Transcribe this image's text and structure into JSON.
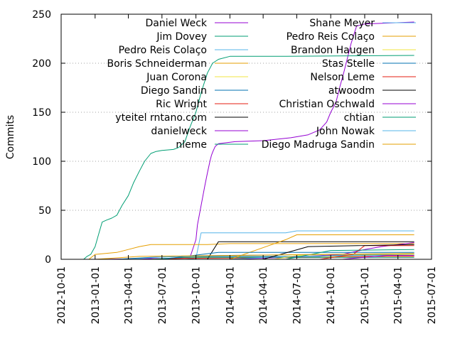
{
  "chart_data": {
    "type": "line",
    "xlabel": "",
    "ylabel": "Commits",
    "ylim": [
      0,
      250
    ],
    "xlim": [
      "2012-10-01",
      "2015-07-01"
    ],
    "x_ticks": [
      "2012-10-01",
      "2013-01-01",
      "2013-04-01",
      "2013-07-01",
      "2013-10-01",
      "2014-01-01",
      "2014-04-01",
      "2014-07-01",
      "2014-10-01",
      "2015-01-01",
      "2015-04-01",
      "2015-07-01"
    ],
    "y_ticks": [
      0,
      50,
      100,
      150,
      200,
      250
    ],
    "grid": "horizontal dotted",
    "legend": "top, two columns",
    "series": [
      {
        "name": "Daniel Weck",
        "color": "#9400d3",
        "points": [
          [
            "2013-01-01",
            0
          ],
          [
            "2013-08-01",
            1
          ],
          [
            "2013-09-15",
            2
          ],
          [
            "2013-10-01",
            20
          ],
          [
            "2013-10-05",
            35
          ],
          [
            "2013-10-10",
            45
          ],
          [
            "2013-10-15",
            55
          ],
          [
            "2013-10-20",
            65
          ],
          [
            "2013-10-25",
            75
          ],
          [
            "2013-11-01",
            88
          ],
          [
            "2013-11-05",
            95
          ],
          [
            "2013-11-08",
            100
          ],
          [
            "2013-11-12",
            106
          ],
          [
            "2013-11-16",
            110
          ],
          [
            "2013-11-22",
            115
          ],
          [
            "2013-12-01",
            118
          ],
          [
            "2014-01-15",
            120
          ],
          [
            "2014-04-01",
            121
          ],
          [
            "2014-06-15",
            124
          ],
          [
            "2014-07-01",
            125
          ],
          [
            "2014-08-01",
            127
          ],
          [
            "2014-09-01",
            132
          ],
          [
            "2014-09-20",
            140
          ],
          [
            "2014-10-01",
            150
          ],
          [
            "2014-10-15",
            160
          ],
          [
            "2014-10-25",
            175
          ],
          [
            "2014-11-05",
            190
          ],
          [
            "2014-11-15",
            205
          ],
          [
            "2014-11-25",
            220
          ],
          [
            "2014-12-05",
            232
          ],
          [
            "2014-12-10",
            238
          ],
          [
            "2015-01-01",
            240
          ],
          [
            "2015-05-15",
            242
          ]
        ]
      },
      {
        "name": "Jim Dovey",
        "color": "#009e73",
        "points": [
          [
            "2012-12-01",
            0
          ],
          [
            "2012-12-10",
            3
          ],
          [
            "2012-12-20",
            5
          ],
          [
            "2013-01-01",
            13
          ],
          [
            "2013-01-10",
            25
          ],
          [
            "2013-01-20",
            38
          ],
          [
            "2013-02-01",
            40
          ],
          [
            "2013-02-15",
            42
          ],
          [
            "2013-03-01",
            45
          ],
          [
            "2013-03-15",
            55
          ],
          [
            "2013-04-01",
            65
          ],
          [
            "2013-04-15",
            78
          ],
          [
            "2013-05-01",
            90
          ],
          [
            "2013-05-15",
            100
          ],
          [
            "2013-06-01",
            108
          ],
          [
            "2013-06-15",
            110
          ],
          [
            "2013-07-01",
            111
          ],
          [
            "2013-08-01",
            112
          ],
          [
            "2013-08-15",
            114
          ],
          [
            "2013-09-01",
            120
          ],
          [
            "2013-09-15",
            135
          ],
          [
            "2013-10-01",
            150
          ],
          [
            "2013-10-15",
            170
          ],
          [
            "2013-11-01",
            190
          ],
          [
            "2013-11-15",
            200
          ],
          [
            "2013-12-01",
            204
          ],
          [
            "2014-01-01",
            207
          ],
          [
            "2014-06-01",
            207
          ],
          [
            "2015-05-15",
            208
          ]
        ]
      },
      {
        "name": "Pedro Reis Colaço",
        "color": "#56b4e9",
        "points": [
          [
            "2013-09-01",
            0
          ],
          [
            "2013-10-01",
            1
          ],
          [
            "2013-10-15",
            27
          ],
          [
            "2014-06-01",
            27
          ],
          [
            "2014-07-01",
            29
          ],
          [
            "2015-05-15",
            29
          ]
        ]
      },
      {
        "name": "Boris Schneiderman",
        "color": "#e69f00",
        "points": [
          [
            "2012-12-15",
            0
          ],
          [
            "2013-01-01",
            5
          ],
          [
            "2013-03-01",
            7
          ],
          [
            "2013-04-01",
            10
          ],
          [
            "2013-05-01",
            13
          ],
          [
            "2013-06-01",
            15
          ],
          [
            "2013-11-01",
            15
          ],
          [
            "2014-01-01",
            16
          ],
          [
            "2015-05-15",
            16
          ]
        ]
      },
      {
        "name": "Juan Corona",
        "color": "#f0e442",
        "points": [
          [
            "2013-06-01",
            0
          ],
          [
            "2013-09-01",
            2
          ],
          [
            "2013-12-01",
            3
          ],
          [
            "2014-07-01",
            3
          ],
          [
            "2015-05-15",
            3
          ]
        ]
      },
      {
        "name": "Diego Sandin",
        "color": "#0072b2",
        "points": [
          [
            "2013-03-01",
            0
          ],
          [
            "2013-06-01",
            2
          ],
          [
            "2013-09-01",
            3
          ],
          [
            "2014-09-01",
            3
          ],
          [
            "2014-10-01",
            4
          ],
          [
            "2015-05-15",
            5
          ]
        ]
      },
      {
        "name": "Ric Wright",
        "color": "#e51e10",
        "points": [
          [
            "2013-06-01",
            0
          ],
          [
            "2013-09-01",
            1
          ],
          [
            "2014-10-01",
            2
          ],
          [
            "2015-01-01",
            3
          ],
          [
            "2015-05-15",
            3
          ]
        ]
      },
      {
        "name": "yteitel rntano.com",
        "color": "#000000",
        "points": [
          [
            "2013-11-01",
            0
          ],
          [
            "2013-12-01",
            18
          ],
          [
            "2015-05-15",
            18
          ]
        ]
      },
      {
        "name": "danielweck",
        "color": "#9400d3",
        "points": [
          [
            "2014-01-01",
            0
          ],
          [
            "2014-06-01",
            2
          ],
          [
            "2014-11-01",
            5
          ],
          [
            "2015-01-01",
            10
          ],
          [
            "2015-02-15",
            13
          ],
          [
            "2015-05-15",
            17
          ]
        ]
      },
      {
        "name": "nleme",
        "color": "#009e73",
        "points": [
          [
            "2013-06-01",
            0
          ],
          [
            "2013-09-01",
            2
          ],
          [
            "2015-05-15",
            2
          ]
        ]
      },
      {
        "name": "Shane Meyer",
        "color": "#56b4e9",
        "points": [
          [
            "2014-01-01",
            0
          ],
          [
            "2014-06-01",
            3
          ],
          [
            "2015-01-01",
            4
          ],
          [
            "2015-05-15",
            4
          ]
        ]
      },
      {
        "name": "Pedro Reis Colaço",
        "color": "#e69f00",
        "points": [
          [
            "2014-01-01",
            0
          ],
          [
            "2014-06-01",
            20
          ],
          [
            "2014-07-01",
            25
          ],
          [
            "2015-05-15",
            25
          ]
        ]
      },
      {
        "name": "Brandon Haugen",
        "color": "#f0e442",
        "points": [
          [
            "2014-05-01",
            0
          ],
          [
            "2014-07-01",
            4
          ],
          [
            "2014-10-01",
            5
          ],
          [
            "2015-05-15",
            5
          ]
        ]
      },
      {
        "name": "Stas Stelle",
        "color": "#0072b2",
        "points": [
          [
            "2013-07-01",
            0
          ],
          [
            "2013-12-01",
            7
          ],
          [
            "2015-05-15",
            7
          ]
        ]
      },
      {
        "name": "Nelson Leme",
        "color": "#e51e10",
        "points": [
          [
            "2014-09-01",
            0
          ],
          [
            "2014-12-01",
            5
          ],
          [
            "2015-01-01",
            14
          ],
          [
            "2015-05-15",
            14
          ]
        ]
      },
      {
        "name": "atwoodm",
        "color": "#000000",
        "points": [
          [
            "2014-04-01",
            0
          ],
          [
            "2014-08-01",
            13
          ],
          [
            "2015-05-15",
            15
          ]
        ]
      },
      {
        "name": "Christian Oschwald",
        "color": "#9400d3",
        "points": [
          [
            "2014-11-01",
            0
          ],
          [
            "2015-01-01",
            2
          ],
          [
            "2015-03-01",
            4
          ],
          [
            "2015-05-15",
            4
          ]
        ]
      },
      {
        "name": "chtian",
        "color": "#009e73",
        "points": [
          [
            "2014-06-01",
            0
          ],
          [
            "2014-10-01",
            9
          ],
          [
            "2015-05-15",
            10
          ]
        ]
      },
      {
        "name": "John Nowak",
        "color": "#56b4e9",
        "points": [
          [
            "2013-04-01",
            0
          ],
          [
            "2013-08-01",
            3
          ],
          [
            "2014-01-01",
            4
          ],
          [
            "2015-05-15",
            6
          ]
        ]
      },
      {
        "name": "Diego Madruga Sandin",
        "color": "#e69f00",
        "points": [
          [
            "2013-01-01",
            0
          ],
          [
            "2013-05-01",
            3
          ],
          [
            "2014-09-01",
            5
          ],
          [
            "2015-05-15",
            6
          ]
        ]
      }
    ]
  }
}
